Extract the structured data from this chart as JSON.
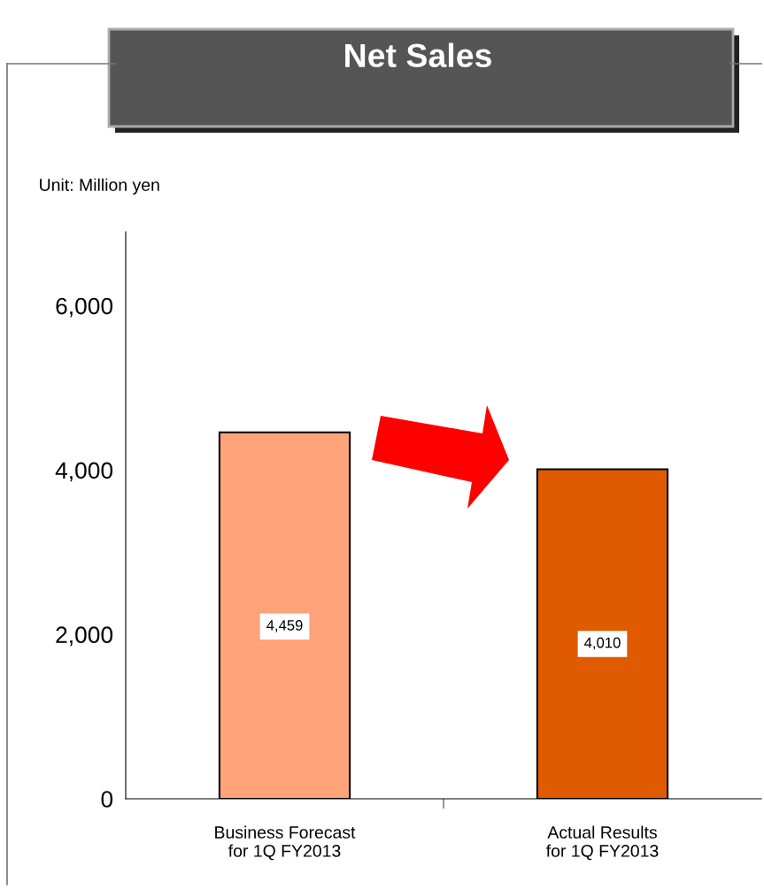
{
  "chart_data": {
    "type": "bar",
    "title": "Net Sales",
    "ylabel": "Unit: Million yen",
    "categories": [
      "Business Forecast\nfor 1Q FY2013",
      "Actual Results\nfor 1Q FY2013"
    ],
    "values": [
      4459,
      4010
    ],
    "colors": [
      "#ffa37a",
      "#e05a00"
    ],
    "value_labels": [
      "4,459",
      "4,010"
    ],
    "ylim": [
      0,
      6900
    ],
    "yticks": [
      0,
      {
        "value": 2000,
        "label": "2,000"
      },
      {
        "value": 4000,
        "label": "4,000"
      },
      {
        "value": 6000,
        "label": "6,000"
      }
    ],
    "grid": false,
    "legend": false
  }
}
